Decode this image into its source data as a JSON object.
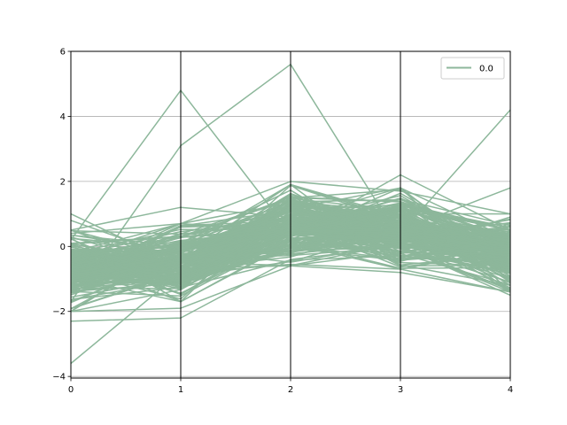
{
  "chart_data": {
    "type": "line",
    "subtype": "parallel-coordinates",
    "title": "",
    "xlabel": "",
    "ylabel": "",
    "axes": [
      0,
      1,
      2,
      3,
      4
    ],
    "x_ticks": [
      "0",
      "1",
      "2",
      "3",
      "4"
    ],
    "y_ticks": [
      "−4",
      "−2",
      "0",
      "2",
      "4",
      "6"
    ],
    "xlim": [
      0,
      4
    ],
    "ylim": [
      -4.05,
      6.0
    ],
    "grid": "horizontal",
    "legend": {
      "position": "top-right",
      "entries": [
        {
          "label": "0.0",
          "color": "#8db79b"
        }
      ]
    },
    "series_color": "#8db79b",
    "line_count_estimate": 200,
    "band_envelope": {
      "x": [
        0,
        1,
        2,
        3,
        4
      ],
      "upper": [
        0.5,
        0.7,
        1.9,
        1.8,
        1.0
      ],
      "lower": [
        -2.0,
        -1.7,
        -0.6,
        -0.7,
        -1.4
      ]
    },
    "series": [
      {
        "values": [
          -3.6,
          -0.8,
          0.5,
          0.3,
          0.0
        ]
      },
      {
        "values": [
          -2.3,
          -2.2,
          -0.4,
          0.0,
          -0.2
        ]
      },
      {
        "values": [
          0.2,
          4.8,
          0.4,
          0.1,
          -0.3
        ]
      },
      {
        "values": [
          -1.7,
          3.1,
          5.6,
          0.2,
          -0.5
        ]
      },
      {
        "values": [
          -0.8,
          -0.3,
          0.5,
          0.4,
          4.2
        ]
      },
      {
        "values": [
          1.0,
          -0.6,
          0.3,
          2.2,
          0.5
        ]
      },
      {
        "values": [
          0.8,
          -0.4,
          0.6,
          0.5,
          1.8
        ]
      },
      {
        "values": [
          0.5,
          1.2,
          0.9,
          0.0,
          -1.5
        ]
      },
      {
        "values": [
          -2.0,
          -1.9,
          -0.6,
          -0.8,
          -1.4
        ]
      },
      {
        "values": [
          0.4,
          0.7,
          2.0,
          1.7,
          1.0
        ]
      }
    ]
  }
}
